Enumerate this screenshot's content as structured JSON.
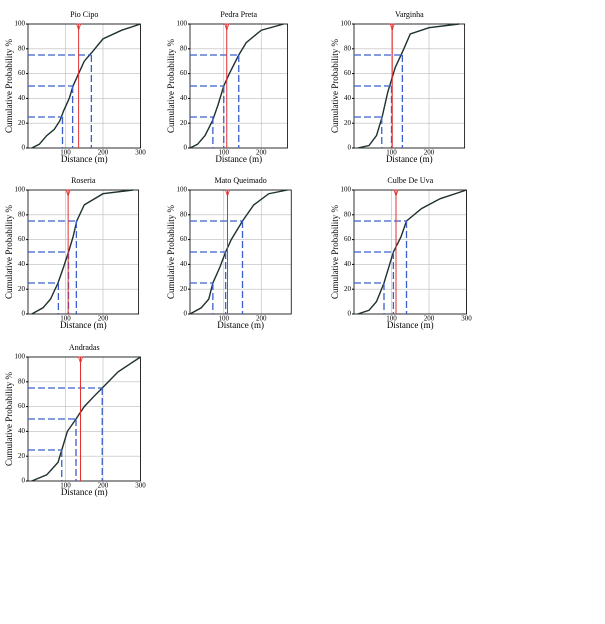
{
  "chart_data": [
    {
      "type": "line",
      "title": "Pio Cipo",
      "xlabel": "Distance (m)",
      "ylabel": "Cumulative Probability %",
      "xlim": [
        0,
        300
      ],
      "ylim": [
        0,
        100
      ],
      "xticks": [
        100,
        200,
        300
      ],
      "yticks": [
        0,
        20,
        40,
        60,
        80,
        100
      ],
      "grid": true,
      "x": [
        10,
        30,
        50,
        70,
        85,
        95,
        110,
        120,
        135,
        150,
        170,
        200,
        250,
        300
      ],
      "values": [
        0,
        3,
        10,
        15,
        22,
        30,
        40,
        50,
        60,
        70,
        77,
        88,
        95,
        100
      ],
      "color": "#1f3030",
      "percentiles": [
        25,
        50,
        75
      ],
      "percentile_x": [
        92,
        119,
        169
      ],
      "mean": 135
    },
    {
      "type": "line",
      "title": "Pedra Preta",
      "xlabel": "Distance (m)",
      "ylabel": "Cumulative Probability %",
      "xlim": [
        10,
        270
      ],
      "ylim": [
        0,
        100
      ],
      "xticks": [
        100,
        200
      ],
      "yticks": [
        0,
        20,
        40,
        60,
        80,
        100
      ],
      "grid": true,
      "x": [
        10,
        30,
        50,
        70,
        85,
        100,
        115,
        140,
        160,
        200,
        260
      ],
      "values": [
        0,
        3,
        10,
        22,
        35,
        50,
        60,
        75,
        85,
        95,
        100
      ],
      "color": "#1f3030",
      "percentiles": [
        25,
        50,
        75
      ],
      "percentile_x": [
        71,
        100,
        140
      ],
      "mean": 108
    },
    {
      "type": "line",
      "title": "Varginha",
      "xlabel": "Distance (m)",
      "ylabel": "Cumulative Probability %",
      "xlim": [
        0,
        295
      ],
      "ylim": [
        0,
        100
      ],
      "xticks": [
        100,
        200
      ],
      "yticks": [
        0,
        20,
        40,
        60,
        80,
        100
      ],
      "grid": true,
      "x": [
        10,
        40,
        60,
        75,
        90,
        100,
        110,
        130,
        150,
        200,
        280
      ],
      "values": [
        0,
        2,
        10,
        25,
        45,
        55,
        65,
        78,
        92,
        97,
        100
      ],
      "color": "#1f3030",
      "percentiles": [
        25,
        50,
        75
      ],
      "percentile_x": [
        74,
        100,
        129
      ],
      "mean": 102
    },
    {
      "type": "line",
      "title": "Roseria",
      "xlabel": "Distance (m)",
      "ylabel": "Cumulative Probability %",
      "xlim": [
        0,
        295
      ],
      "ylim": [
        0,
        100
      ],
      "xticks": [
        100,
        200
      ],
      "yticks": [
        0,
        20,
        40,
        60,
        80,
        100
      ],
      "grid": true,
      "x": [
        10,
        40,
        60,
        80,
        95,
        108,
        120,
        130,
        150,
        200,
        280
      ],
      "values": [
        0,
        5,
        12,
        25,
        38,
        50,
        62,
        75,
        88,
        97,
        100
      ],
      "color": "#1f3030",
      "percentiles": [
        25,
        50,
        75
      ],
      "percentile_x": [
        81,
        108,
        129
      ],
      "mean": 107
    },
    {
      "type": "line",
      "title": "Mato Queimado",
      "xlabel": "Distance (m)",
      "ylabel": "Cumulative Probability %",
      "xlim": [
        10,
        280
      ],
      "ylim": [
        0,
        100
      ],
      "xticks": [
        100,
        200
      ],
      "yticks": [
        0,
        20,
        40,
        60,
        80,
        100
      ],
      "grid": true,
      "x": [
        10,
        40,
        60,
        71,
        90,
        105,
        120,
        150,
        180,
        220,
        270
      ],
      "values": [
        0,
        5,
        12,
        25,
        38,
        50,
        60,
        75,
        88,
        97,
        100
      ],
      "color": "#1f3030",
      "percentiles": [
        25,
        50,
        75
      ],
      "percentile_x": [
        71,
        105,
        150
      ],
      "mean": 110
    },
    {
      "type": "line",
      "title": "Culbe De Uva",
      "xlabel": "Distance (m)",
      "ylabel": "Cumulative Probability %",
      "xlim": [
        0,
        300
      ],
      "ylim": [
        0,
        100
      ],
      "xticks": [
        100,
        200,
        300
      ],
      "yticks": [
        0,
        20,
        40,
        60,
        80,
        100
      ],
      "grid": true,
      "x": [
        10,
        40,
        60,
        80,
        95,
        105,
        125,
        140,
        180,
        230,
        300
      ],
      "values": [
        0,
        3,
        10,
        25,
        40,
        50,
        62,
        75,
        85,
        93,
        100
      ],
      "color": "#1f3030",
      "percentiles": [
        25,
        50,
        75
      ],
      "percentile_x": [
        80,
        105,
        140
      ],
      "mean": 112
    },
    {
      "type": "line",
      "title": "Andradas",
      "xlabel": "Distance (m)",
      "ylabel": "Cumulative Probability %",
      "xlim": [
        0,
        300
      ],
      "ylim": [
        0,
        100
      ],
      "xticks": [
        100,
        200,
        300
      ],
      "yticks": [
        0,
        20,
        40,
        60,
        80,
        100
      ],
      "grid": true,
      "x": [
        10,
        50,
        80,
        90,
        105,
        128,
        150,
        175,
        198,
        240,
        300
      ],
      "values": [
        0,
        5,
        15,
        25,
        40,
        50,
        60,
        68,
        75,
        88,
        100
      ],
      "color": "#1f3030",
      "percentiles": [
        25,
        50,
        75
      ],
      "percentile_x": [
        90,
        128,
        198
      ],
      "mean": 140
    }
  ]
}
